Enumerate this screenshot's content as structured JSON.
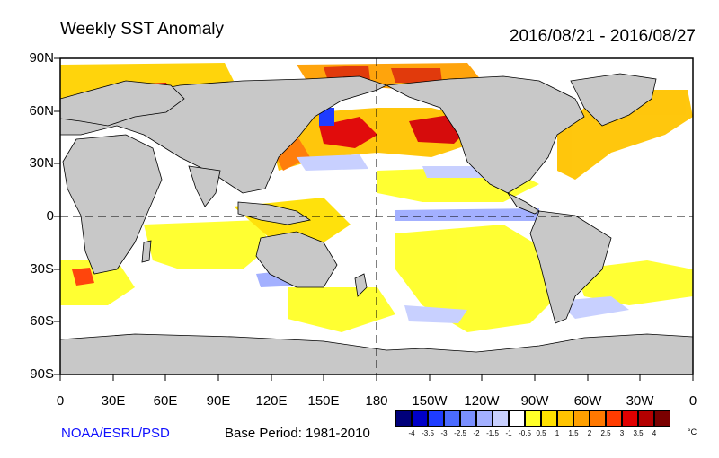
{
  "header": {
    "title": "Weekly SST Anomaly",
    "date_range": "2016/08/21 - 2016/08/27"
  },
  "map": {
    "lat_labels": [
      "90N",
      "60N",
      "30N",
      "0",
      "30S",
      "60S",
      "90S"
    ],
    "lon_labels": [
      "0",
      "30E",
      "60E",
      "90E",
      "120E",
      "150E",
      "180",
      "150W",
      "120W",
      "90W",
      "60W",
      "30W",
      "0"
    ],
    "land_color": "#c8c8c8",
    "ocean_color": "#ffffff",
    "equator_dashed": true,
    "dateline_dashed": true
  },
  "footer": {
    "source": "NOAA/ESRL/PSD",
    "base_period": "Base Period: 1981-2010"
  },
  "colorbar": {
    "colors": [
      "#00007a",
      "#0000c8",
      "#1e3cff",
      "#4b6bff",
      "#7a8fff",
      "#a3b0ff",
      "#c8d0ff",
      "#ffffff",
      "#ffff28",
      "#ffe000",
      "#ffc400",
      "#ffa000",
      "#ff7800",
      "#ff3c00",
      "#e00000",
      "#b40000",
      "#7a0000"
    ],
    "labels": [
      "-4",
      "-3.5",
      "-3",
      "-2.5",
      "-2",
      "-1.5",
      "-1",
      "-0.5",
      "0.5",
      "1",
      "1.5",
      "2",
      "2.5",
      "3",
      "3.5",
      "4"
    ],
    "unit": "°C"
  }
}
